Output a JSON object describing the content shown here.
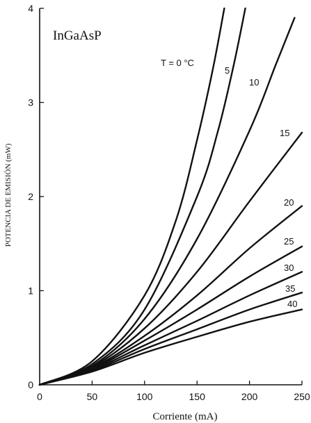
{
  "chart_data": {
    "type": "line",
    "panel_label": "InGaAsP",
    "xlabel": "Corriente (mA)",
    "ylabel": "POTENCIA DE EMISIÓN (mW)",
    "xlim": [
      0,
      250
    ],
    "ylim": [
      0,
      4
    ],
    "x_ticks": [
      "0",
      "50",
      "100",
      "150",
      "200",
      "250"
    ],
    "y_ticks": [
      "0",
      "1",
      "2",
      "3",
      "4"
    ],
    "grid": false,
    "legend": "none",
    "series": [
      {
        "label": "T = 0 °C",
        "x": [
          0,
          50,
          100,
          130,
          150,
          165,
          176
        ],
        "y": [
          0,
          0.25,
          0.95,
          1.75,
          2.6,
          3.35,
          4.0
        ]
      },
      {
        "label": "5",
        "x": [
          0,
          50,
          100,
          150,
          170,
          185,
          196
        ],
        "y": [
          0,
          0.22,
          0.8,
          2.0,
          2.7,
          3.4,
          4.0
        ]
      },
      {
        "label": "10",
        "x": [
          0,
          50,
          100,
          150,
          200,
          225,
          243
        ],
        "y": [
          0,
          0.2,
          0.7,
          1.55,
          2.7,
          3.4,
          3.9
        ]
      },
      {
        "label": "15",
        "x": [
          0,
          50,
          100,
          150,
          200,
          250
        ],
        "y": [
          0,
          0.19,
          0.6,
          1.2,
          1.95,
          2.68
        ]
      },
      {
        "label": "20",
        "x": [
          0,
          50,
          100,
          150,
          200,
          250
        ],
        "y": [
          0,
          0.18,
          0.52,
          0.95,
          1.45,
          1.9
        ]
      },
      {
        "label": "25",
        "x": [
          0,
          50,
          100,
          150,
          200,
          250
        ],
        "y": [
          0,
          0.17,
          0.47,
          0.8,
          1.15,
          1.47
        ]
      },
      {
        "label": "30",
        "x": [
          0,
          50,
          100,
          150,
          200,
          250
        ],
        "y": [
          0,
          0.16,
          0.42,
          0.68,
          0.95,
          1.2
        ]
      },
      {
        "label": "35",
        "x": [
          0,
          50,
          100,
          150,
          200,
          250
        ],
        "y": [
          0,
          0.15,
          0.38,
          0.59,
          0.8,
          0.98
        ]
      },
      {
        "label": "40",
        "x": [
          0,
          50,
          100,
          150,
          200,
          250
        ],
        "y": [
          0,
          0.14,
          0.34,
          0.51,
          0.67,
          0.8
        ]
      }
    ]
  }
}
